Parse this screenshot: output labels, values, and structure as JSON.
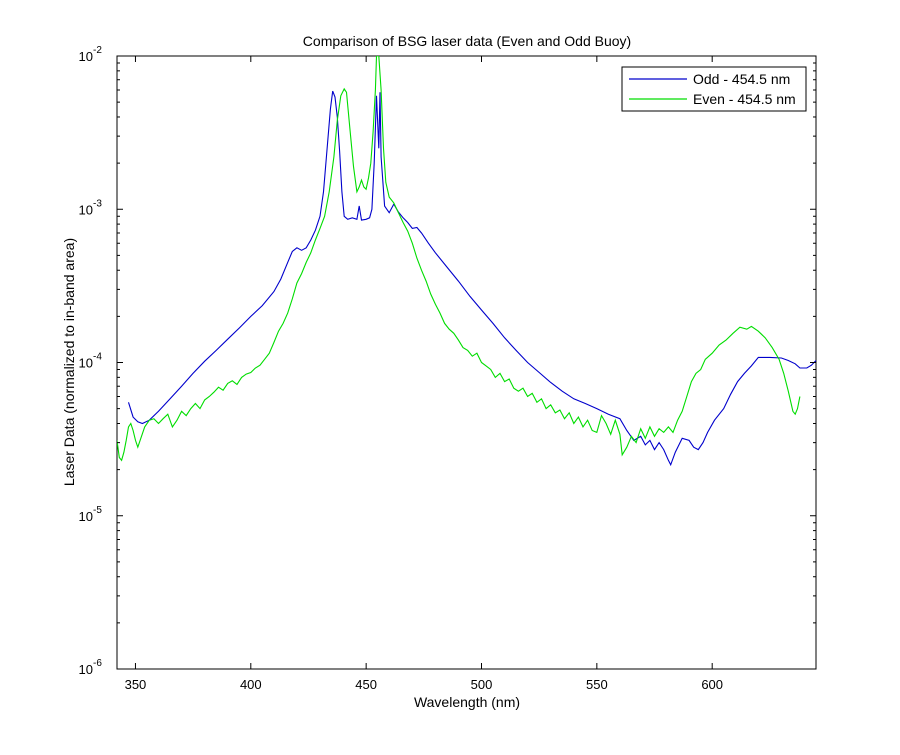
{
  "chart_data": {
    "type": "line",
    "title": "Comparison of BSG laser data (Even and Odd Buoy)",
    "xlabel": "Wavelength (nm)",
    "ylabel": "Laser Data (normalized to in-band area)",
    "xlim": [
      342,
      645
    ],
    "ylim": [
      1e-06,
      0.01
    ],
    "yscale": "log",
    "grid": false,
    "legend_position": "top-right",
    "x_ticks": [
      {
        "value": 350,
        "label": "350"
      },
      {
        "value": 400,
        "label": "400"
      },
      {
        "value": 450,
        "label": "450"
      },
      {
        "value": 500,
        "label": "500"
      },
      {
        "value": 550,
        "label": "550"
      },
      {
        "value": 600,
        "label": "600"
      }
    ],
    "y_ticks": [
      {
        "value": 1e-06,
        "base": "10",
        "exp": "-6"
      },
      {
        "value": 1e-05,
        "base": "10",
        "exp": "-5"
      },
      {
        "value": 0.0001,
        "base": "10",
        "exp": "-4"
      },
      {
        "value": 0.001,
        "base": "10",
        "exp": "-3"
      },
      {
        "value": 0.01,
        "base": "10",
        "exp": "-2"
      }
    ],
    "series": [
      {
        "name": "Odd - 454.5 nm",
        "color": "#0000cc",
        "points": [
          [
            347,
            5.5e-05
          ],
          [
            349,
            4.4e-05
          ],
          [
            351,
            4.1e-05
          ],
          [
            353,
            4e-05
          ],
          [
            356,
            4.2e-05
          ],
          [
            360,
            4.8e-05
          ],
          [
            365,
            5.8e-05
          ],
          [
            370,
            7e-05
          ],
          [
            375,
            8.5e-05
          ],
          [
            380,
            0.000102
          ],
          [
            385,
            0.00012
          ],
          [
            390,
            0.000142
          ],
          [
            395,
            0.000168
          ],
          [
            400,
            0.0002
          ],
          [
            405,
            0.000235
          ],
          [
            410,
            0.00029
          ],
          [
            413,
            0.00035
          ],
          [
            416,
            0.00045
          ],
          [
            418,
            0.00053
          ],
          [
            420,
            0.00056
          ],
          [
            422,
            0.00054
          ],
          [
            424,
            0.00056
          ],
          [
            426,
            0.00063
          ],
          [
            428,
            0.00073
          ],
          [
            430,
            0.0009
          ],
          [
            431.5,
            0.0013
          ],
          [
            433,
            0.0024
          ],
          [
            434.5,
            0.0045
          ],
          [
            435.5,
            0.0059
          ],
          [
            436.5,
            0.0054
          ],
          [
            437.5,
            0.004
          ],
          [
            438.5,
            0.0024
          ],
          [
            439.5,
            0.0013
          ],
          [
            440.5,
            0.0009
          ],
          [
            442,
            0.00086
          ],
          [
            444,
            0.00088
          ],
          [
            446,
            0.00086
          ],
          [
            447,
            0.00105
          ],
          [
            448,
            0.00085
          ],
          [
            450,
            0.00086
          ],
          [
            451.5,
            0.00088
          ],
          [
            452.5,
            0.001
          ],
          [
            453.5,
            0.002
          ],
          [
            454.5,
            0.0055
          ],
          [
            455.5,
            0.0025
          ],
          [
            456,
            0.0058
          ],
          [
            456.5,
            0.0022
          ],
          [
            458,
            0.00105
          ],
          [
            460,
            0.00095
          ],
          [
            462,
            0.00108
          ],
          [
            464,
            0.00096
          ],
          [
            466,
            0.00088
          ],
          [
            468,
            0.00082
          ],
          [
            470,
            0.00075
          ],
          [
            472,
            0.00076
          ],
          [
            474,
            0.0007
          ],
          [
            477,
            0.0006
          ],
          [
            480,
            0.00052
          ],
          [
            485,
            0.00042
          ],
          [
            490,
            0.00034
          ],
          [
            495,
            0.00027
          ],
          [
            500,
            0.00022
          ],
          [
            505,
            0.00018
          ],
          [
            510,
            0.000145
          ],
          [
            515,
            0.00012
          ],
          [
            520,
            0.0001
          ],
          [
            525,
            8.6e-05
          ],
          [
            530,
            7.4e-05
          ],
          [
            535,
            6.5e-05
          ],
          [
            540,
            5.8e-05
          ],
          [
            545,
            5.4e-05
          ],
          [
            550,
            5e-05
          ],
          [
            555,
            4.6e-05
          ],
          [
            560,
            4.3e-05
          ],
          [
            563,
            3.6e-05
          ],
          [
            566,
            3.1e-05
          ],
          [
            569,
            3.3e-05
          ],
          [
            571,
            2.9e-05
          ],
          [
            573,
            3.1e-05
          ],
          [
            575,
            2.7e-05
          ],
          [
            577,
            3e-05
          ],
          [
            579,
            2.7e-05
          ],
          [
            581,
            2.3e-05
          ],
          [
            582,
            2.15e-05
          ],
          [
            584,
            2.6e-05
          ],
          [
            587,
            3.2e-05
          ],
          [
            590,
            3.1e-05
          ],
          [
            592,
            2.8e-05
          ],
          [
            594,
            2.7e-05
          ],
          [
            596,
            3e-05
          ],
          [
            598,
            3.5e-05
          ],
          [
            601,
            4.2e-05
          ],
          [
            605,
            5e-05
          ],
          [
            608,
            6.2e-05
          ],
          [
            611,
            7.5e-05
          ],
          [
            614,
            8.5e-05
          ],
          [
            617,
            9.5e-05
          ],
          [
            620,
            0.000108
          ],
          [
            625,
            0.000108
          ],
          [
            630,
            0.000107
          ],
          [
            633,
            0.000103
          ],
          [
            636,
            9.8e-05
          ],
          [
            638,
            9.2e-05
          ],
          [
            641,
            9.2e-05
          ],
          [
            643,
            9.6e-05
          ],
          [
            645,
            0.000103
          ]
        ]
      },
      {
        "name": "Even - 454.5 nm",
        "color": "#00dd00",
        "points": [
          [
            342,
            3.1e-05
          ],
          [
            343,
            2.4e-05
          ],
          [
            344,
            2.3e-05
          ],
          [
            345,
            2.6e-05
          ],
          [
            346,
            3.1e-05
          ],
          [
            347,
            3.8e-05
          ],
          [
            348,
            4e-05
          ],
          [
            349,
            3.6e-05
          ],
          [
            350,
            3.1e-05
          ],
          [
            351,
            2.8e-05
          ],
          [
            352,
            3.1e-05
          ],
          [
            354,
            3.8e-05
          ],
          [
            356,
            4.2e-05
          ],
          [
            358,
            4.3e-05
          ],
          [
            360,
            4e-05
          ],
          [
            362,
            4.3e-05
          ],
          [
            364,
            4.6e-05
          ],
          [
            366,
            3.8e-05
          ],
          [
            368,
            4.2e-05
          ],
          [
            370,
            4.8e-05
          ],
          [
            372,
            4.5e-05
          ],
          [
            374,
            5e-05
          ],
          [
            376,
            5.4e-05
          ],
          [
            378,
            5e-05
          ],
          [
            380,
            5.7e-05
          ],
          [
            382,
            6e-05
          ],
          [
            384,
            6.4e-05
          ],
          [
            386,
            6.9e-05
          ],
          [
            388,
            6.6e-05
          ],
          [
            390,
            7.3e-05
          ],
          [
            392,
            7.6e-05
          ],
          [
            394,
            7.2e-05
          ],
          [
            396,
            8e-05
          ],
          [
            398,
            8.4e-05
          ],
          [
            400,
            8.6e-05
          ],
          [
            402,
            9.2e-05
          ],
          [
            404,
            9.6e-05
          ],
          [
            406,
            0.000105
          ],
          [
            408,
            0.000115
          ],
          [
            410,
            0.000135
          ],
          [
            412,
            0.00016
          ],
          [
            414,
            0.00018
          ],
          [
            416,
            0.00021
          ],
          [
            418,
            0.00026
          ],
          [
            420,
            0.00033
          ],
          [
            422,
            0.00038
          ],
          [
            424,
            0.00045
          ],
          [
            426,
            0.00052
          ],
          [
            428,
            0.00063
          ],
          [
            430,
            0.00075
          ],
          [
            432,
            0.0009
          ],
          [
            434,
            0.0013
          ],
          [
            436,
            0.0022
          ],
          [
            437.5,
            0.0038
          ],
          [
            439,
            0.0055
          ],
          [
            440.5,
            0.0061
          ],
          [
            441.5,
            0.0058
          ],
          [
            443,
            0.0033
          ],
          [
            444.5,
            0.0019
          ],
          [
            446,
            0.0013
          ],
          [
            447,
            0.0014
          ],
          [
            448,
            0.00155
          ],
          [
            449,
            0.0014
          ],
          [
            450,
            0.00135
          ],
          [
            451,
            0.0016
          ],
          [
            452,
            0.002
          ],
          [
            453,
            0.0032
          ],
          [
            454,
            0.006
          ],
          [
            454.5,
            0.01
          ],
          [
            455.5,
            0.01
          ],
          [
            456.5,
            0.006
          ],
          [
            457.5,
            0.0025
          ],
          [
            458.5,
            0.0015
          ],
          [
            460,
            0.0012
          ],
          [
            462,
            0.0011
          ],
          [
            464,
            0.00095
          ],
          [
            466,
            0.00082
          ],
          [
            468,
            0.00072
          ],
          [
            470,
            0.0006
          ],
          [
            472,
            0.00048
          ],
          [
            474,
            0.0004
          ],
          [
            476,
            0.00034
          ],
          [
            478,
            0.00028
          ],
          [
            480,
            0.00024
          ],
          [
            482,
            0.00021
          ],
          [
            484,
            0.00018
          ],
          [
            486,
            0.000165
          ],
          [
            488,
            0.000155
          ],
          [
            490,
            0.00014
          ],
          [
            492,
            0.000125
          ],
          [
            494,
            0.00012
          ],
          [
            496,
            0.00011
          ],
          [
            498,
            0.000115
          ],
          [
            500,
            0.0001
          ],
          [
            502,
            9.5e-05
          ],
          [
            504,
            9e-05
          ],
          [
            506,
            8e-05
          ],
          [
            508,
            8.5e-05
          ],
          [
            510,
            7.5e-05
          ],
          [
            512,
            7.8e-05
          ],
          [
            514,
            6.8e-05
          ],
          [
            516,
            6.5e-05
          ],
          [
            518,
            6.8e-05
          ],
          [
            520,
            6e-05
          ],
          [
            522,
            6.3e-05
          ],
          [
            524,
            5.5e-05
          ],
          [
            526,
            5.8e-05
          ],
          [
            528,
            5e-05
          ],
          [
            530,
            5.3e-05
          ],
          [
            532,
            4.7e-05
          ],
          [
            534,
            4.9e-05
          ],
          [
            536,
            4.3e-05
          ],
          [
            538,
            4.7e-05
          ],
          [
            540,
            4e-05
          ],
          [
            542,
            4.4e-05
          ],
          [
            544,
            3.8e-05
          ],
          [
            546,
            4.2e-05
          ],
          [
            548,
            3.6e-05
          ],
          [
            550,
            3.5e-05
          ],
          [
            552,
            4.5e-05
          ],
          [
            554,
            4e-05
          ],
          [
            556,
            3.4e-05
          ],
          [
            558,
            4.2e-05
          ],
          [
            560,
            3.4e-05
          ],
          [
            561,
            2.5e-05
          ],
          [
            563,
            2.8e-05
          ],
          [
            565,
            3.3e-05
          ],
          [
            567,
            3e-05
          ],
          [
            569,
            3.7e-05
          ],
          [
            571,
            3.2e-05
          ],
          [
            573,
            3.8e-05
          ],
          [
            575,
            3.3e-05
          ],
          [
            577,
            3.7e-05
          ],
          [
            579,
            3.5e-05
          ],
          [
            581,
            3.8e-05
          ],
          [
            583,
            3.5e-05
          ],
          [
            585,
            4.2e-05
          ],
          [
            587,
            4.8e-05
          ],
          [
            589,
            6e-05
          ],
          [
            591,
            7.5e-05
          ],
          [
            593,
            8.5e-05
          ],
          [
            595,
            9e-05
          ],
          [
            597,
            0.000105
          ],
          [
            600,
            0.000115
          ],
          [
            603,
            0.00013
          ],
          [
            606,
            0.00014
          ],
          [
            609,
            0.000155
          ],
          [
            612,
            0.00017
          ],
          [
            615,
            0.000165
          ],
          [
            617,
            0.000172
          ],
          [
            620,
            0.00016
          ],
          [
            623,
            0.000145
          ],
          [
            626,
            0.000125
          ],
          [
            629,
            0.000105
          ],
          [
            631,
            8.5e-05
          ],
          [
            633,
            6.5e-05
          ],
          [
            635,
            4.8e-05
          ],
          [
            636,
            4.6e-05
          ],
          [
            637,
            5e-05
          ],
          [
            638,
            6e-05
          ]
        ]
      }
    ]
  }
}
